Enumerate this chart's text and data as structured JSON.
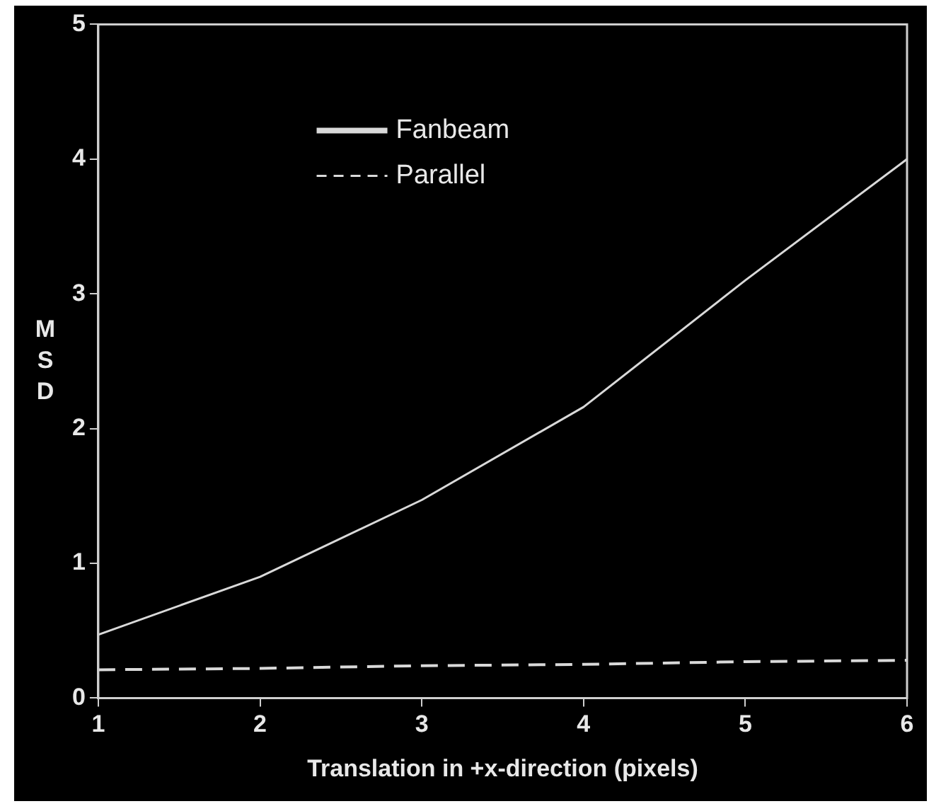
{
  "chart_data": {
    "type": "line",
    "xlabel": "Translation in +x-direction (pixels)",
    "ylabel": "MSD",
    "x": [
      1,
      2,
      3,
      4,
      5,
      6
    ],
    "series": [
      {
        "name": "Fanbeam",
        "color": "#d9d9d9",
        "line_style": "solid",
        "values": [
          0.47,
          0.9,
          1.47,
          2.16,
          3.1,
          4.0
        ]
      },
      {
        "name": "Parallel",
        "color": "#d9d9d9",
        "line_style": "dashed",
        "values": [
          0.21,
          0.22,
          0.24,
          0.25,
          0.27,
          0.28
        ]
      }
    ],
    "xlim": [
      1,
      6
    ],
    "xticks": [
      1,
      2,
      3,
      4,
      5,
      6
    ],
    "ylim": [
      0,
      5
    ],
    "yticks": [
      0,
      1,
      2,
      3,
      4,
      5
    ],
    "grid": false,
    "legend": "top left",
    "marker": "none"
  }
}
